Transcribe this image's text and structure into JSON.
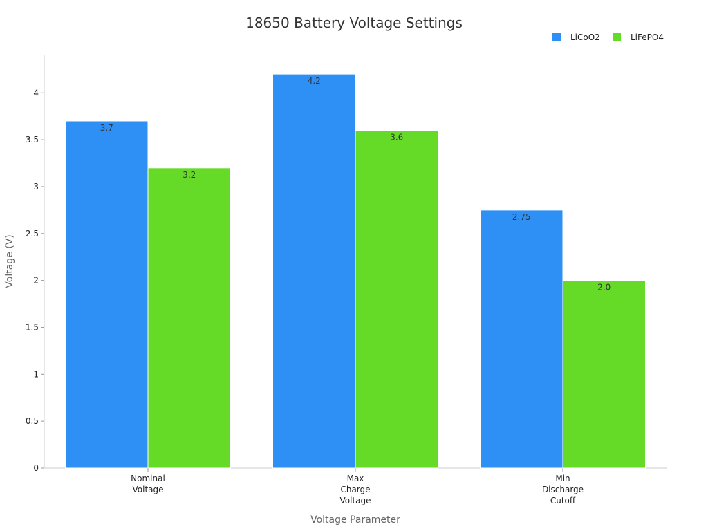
{
  "chart_data": {
    "type": "bar",
    "title": "18650 Battery Voltage Settings",
    "xlabel": "Voltage Parameter",
    "ylabel": "Voltage (V)",
    "categories": [
      [
        "Nominal",
        "Voltage"
      ],
      [
        "Max",
        "Charge",
        "Voltage"
      ],
      [
        "Min",
        "Discharge",
        "Cutoff"
      ]
    ],
    "series": [
      {
        "name": "LiCoO2",
        "color": "#2E90F5",
        "values": [
          3.7,
          4.2,
          2.75
        ],
        "labels": [
          "3.7",
          "4.2",
          "2.75"
        ]
      },
      {
        "name": "LiFePO4",
        "color": "#66DB27",
        "values": [
          3.2,
          3.6,
          2.0
        ],
        "labels": [
          "3.2",
          "3.6",
          "2.0"
        ]
      }
    ],
    "ylim": [
      0,
      4.4
    ],
    "yticks": [
      0,
      0.5,
      1,
      1.5,
      2,
      2.5,
      3,
      3.5,
      4
    ],
    "ytick_labels": [
      "0",
      "0.5",
      "1",
      "1.5",
      "2",
      "2.5",
      "3",
      "3.5",
      "4"
    ],
    "grid": false,
    "legend_position": "top-right"
  }
}
